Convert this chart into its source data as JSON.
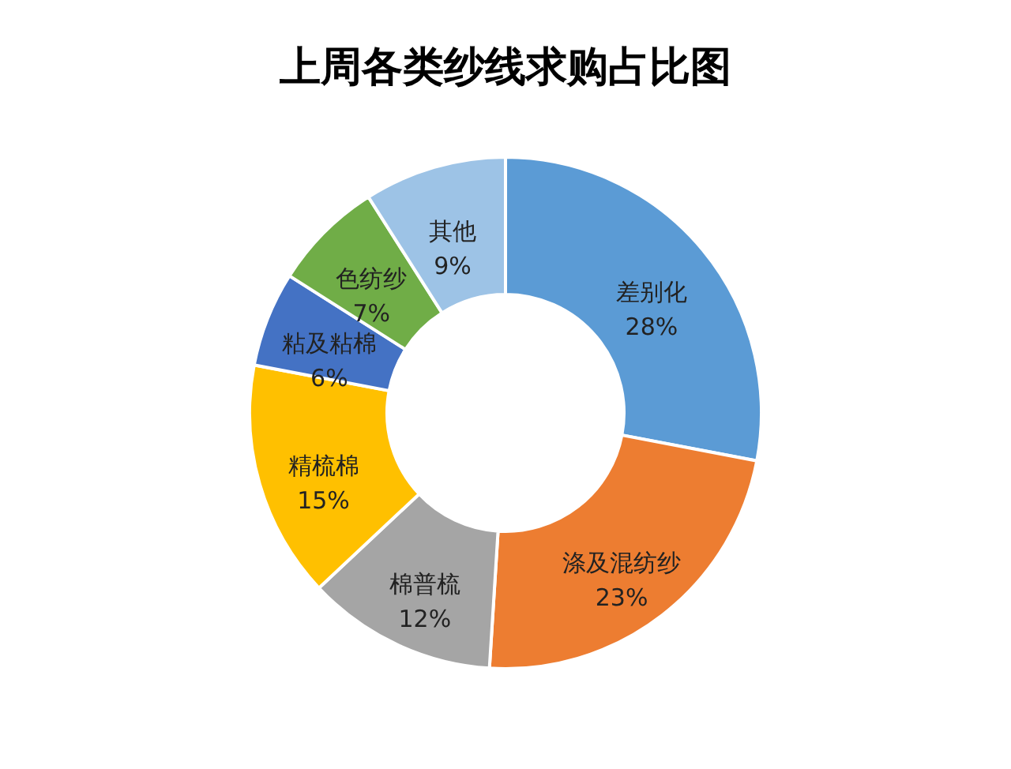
{
  "chart_data": {
    "type": "donut",
    "title": "上周各类纱线求购占比图",
    "categories": [
      "差别化",
      "涤及混纺纱",
      "棉普梳",
      "精梳棉",
      "粘及粘棉",
      "色纺纱",
      "其他"
    ],
    "values": [
      28,
      23,
      12,
      15,
      6,
      7,
      9
    ],
    "value_labels": [
      "28%",
      "23%",
      "12%",
      "15%",
      "6%",
      "7%",
      "9%"
    ],
    "colors": [
      "#5b9bd5",
      "#ed7d31",
      "#a5a5a5",
      "#ffc000",
      "#4472c4",
      "#70ad47",
      "#9dc3e6"
    ],
    "legend": false
  }
}
